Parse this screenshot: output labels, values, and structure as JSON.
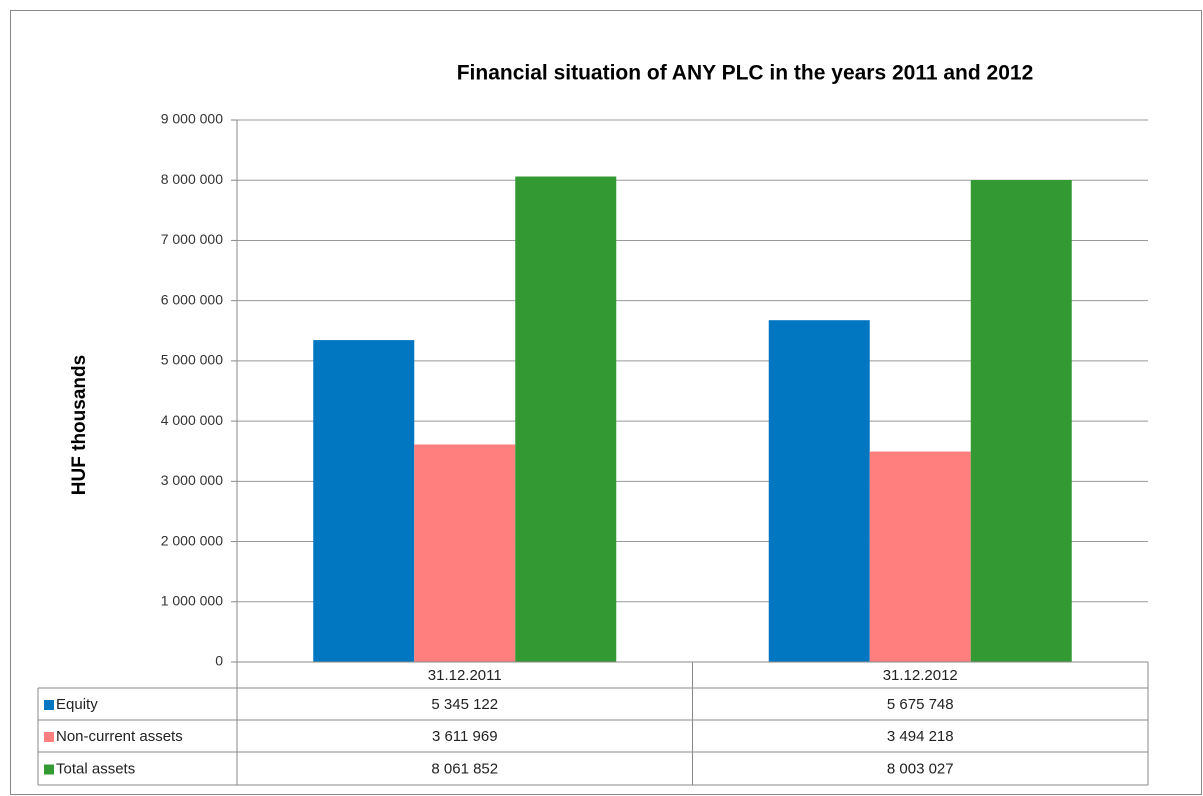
{
  "chart_data": {
    "type": "bar",
    "title": "Financial situation of ANY PLC in the years 2011 and 2012",
    "y_label": "HUF thousands",
    "categories": [
      "31.12.2011",
      "31.12.2012"
    ],
    "series": [
      {
        "name": "Equity",
        "color": "#0077c0",
        "values": [
          5345122,
          5675748
        ],
        "value_labels": [
          "5 345 122",
          "5 675 748"
        ]
      },
      {
        "name": "Non-current assets",
        "color": "#ff7f7f",
        "values": [
          3611969,
          3494218
        ],
        "value_labels": [
          "3 611 969",
          "3 494 218"
        ]
      },
      {
        "name": "Total assets",
        "color": "#339933",
        "values": [
          8061852,
          8003027
        ],
        "value_labels": [
          "8 061 852",
          "8 003 027"
        ]
      }
    ],
    "ylim": [
      0,
      9000000
    ],
    "yticks": [
      0,
      {
        "value": 1000000,
        "label": "1 000 000"
      },
      {
        "value": 2000000,
        "label": "2 000 000"
      },
      {
        "value": 3000000,
        "label": "3 000 000"
      },
      {
        "value": 4000000,
        "label": "4 000 000"
      },
      {
        "value": 5000000,
        "label": "5 000 000"
      },
      {
        "value": 6000000,
        "label": "6 000 000"
      },
      {
        "value": 7000000,
        "label": "7 000 000"
      },
      {
        "value": 8000000,
        "label": "8 000 000"
      },
      {
        "value": 9000000,
        "label": "9 000 000"
      }
    ],
    "grid": true
  }
}
